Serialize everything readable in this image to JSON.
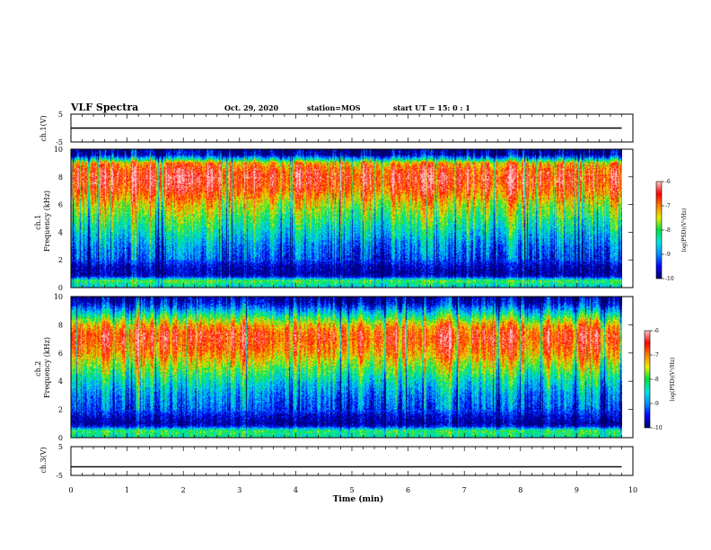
{
  "header": {
    "title": "VLF Spectra",
    "date": "Oct. 29, 2020",
    "station": "station=MOS",
    "start": "start  UT =   15: 0  : 1"
  },
  "colors": {
    "colormap": [
      "#000066",
      "#0000ff",
      "#0090ff",
      "#00e6e6",
      "#00e040",
      "#e6f000",
      "#ff8000",
      "#ff0000",
      "#ffc8c8"
    ],
    "axis": "#000000",
    "background": "#ffffff"
  },
  "chart_data": [
    {
      "type": "line",
      "panel": "ch1-waveform",
      "ylabel": "ch.1(V)",
      "ylim": [
        -5,
        5
      ],
      "yticks": [
        "5",
        "-5"
      ],
      "xlim": [
        0,
        10
      ],
      "series": [
        {
          "x": [
            0,
            9.8
          ],
          "y": [
            0,
            0
          ]
        }
      ]
    },
    {
      "type": "heatmap",
      "panel": "ch1-spectrogram",
      "ylabel": "ch.1\nFrequency (kHz)",
      "ylim": [
        0,
        10
      ],
      "yticks": [
        "0",
        "2",
        "4",
        "6",
        "8",
        "10"
      ],
      "xlim": [
        0,
        10
      ],
      "data_end": 9.8,
      "profile": {
        "freq_khz": [
          0,
          0.5,
          0.8,
          1.0,
          1.5,
          2.0,
          3.0,
          4.0,
          5.0,
          6.0,
          7.0,
          7.5,
          8.0,
          8.5,
          9.0,
          9.3,
          9.6,
          10.0
        ],
        "log_psd": [
          -8.6,
          -7.9,
          -9.6,
          -9.8,
          -9.7,
          -9.3,
          -9.0,
          -8.5,
          -8.0,
          -7.5,
          -6.8,
          -6.6,
          -6.5,
          -6.7,
          -7.2,
          -8.6,
          -9.8,
          -9.9
        ]
      },
      "colorbar": {
        "label": "log(PSD)(V²/Hz)",
        "range": [
          -10,
          -6
        ],
        "ticks": [
          "-6",
          "-7",
          "-8",
          "-9",
          "-10"
        ]
      }
    },
    {
      "type": "heatmap",
      "panel": "ch2-spectrogram",
      "ylabel": "ch.2\nFrequency (kHz)",
      "ylim": [
        0,
        10
      ],
      "yticks": [
        "0",
        "2",
        "4",
        "6",
        "8",
        "10"
      ],
      "xlim": [
        0,
        10
      ],
      "data_end": 9.8,
      "profile": {
        "freq_khz": [
          0,
          0.5,
          0.8,
          1.0,
          1.5,
          2.0,
          3.0,
          4.0,
          5.0,
          6.0,
          7.0,
          7.5,
          8.0,
          8.5,
          9.0,
          9.5,
          10.0
        ],
        "log_psd": [
          -8.3,
          -8.0,
          -9.5,
          -9.8,
          -9.6,
          -9.2,
          -8.9,
          -8.4,
          -7.7,
          -7.0,
          -6.6,
          -6.7,
          -7.2,
          -7.9,
          -8.7,
          -9.5,
          -9.8
        ]
      },
      "colorbar": {
        "label": "log(PSD)(V²/Hz)",
        "range": [
          -10,
          -6
        ],
        "ticks": [
          "-6",
          "-7",
          "-8",
          "-9",
          "-10"
        ]
      }
    },
    {
      "type": "line",
      "panel": "ch3-waveform",
      "ylabel": "ch.3(V)",
      "ylim": [
        -5,
        5
      ],
      "yticks": [
        "5",
        "-5"
      ],
      "xlim": [
        0,
        10
      ],
      "xlabel": "Time (min)",
      "xticks": [
        "0",
        "1",
        "2",
        "3",
        "4",
        "5",
        "6",
        "7",
        "8",
        "9",
        "10"
      ],
      "series": [
        {
          "x": [
            0,
            9.8
          ],
          "y": [
            -2,
            -2
          ]
        }
      ]
    }
  ]
}
